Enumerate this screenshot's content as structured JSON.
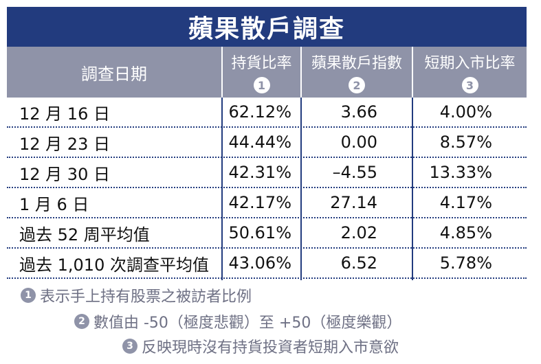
{
  "title": "蘋果散戶調查",
  "colors": {
    "title_bg": "#223b7e",
    "header_bg": "#8f93a8",
    "note_text": "#6e7084"
  },
  "chart_data": {
    "type": "table",
    "title": "蘋果散戶調查",
    "columns": [
      {
        "label": "調查日期",
        "marker": ""
      },
      {
        "label": "持貨比率",
        "marker": "1"
      },
      {
        "label": "蘋果散戶指數",
        "marker": "2"
      },
      {
        "label": "短期入市比率",
        "marker": "3"
      }
    ],
    "rows": [
      {
        "date": "12 月 16 日",
        "v1": "62.12%",
        "v2": "3.66",
        "v3": "4.00%"
      },
      {
        "date": "12 月 23 日",
        "v1": "44.44%",
        "v2": "0.00",
        "v3": "8.57%"
      },
      {
        "date": "12 月 30 日",
        "v1": "42.31%",
        "v2": "–4.55",
        "v3": "13.33%"
      },
      {
        "date": "1 月 6 日",
        "v1": "42.17%",
        "v2": "27.14",
        "v3": "4.17%"
      },
      {
        "date": "過去 52 周平均值",
        "v1": "50.61%",
        "v2": "2.02",
        "v3": "4.85%"
      },
      {
        "date": "過去 1,010 次調查平均值",
        "v1": "43.06%",
        "v2": "6.52",
        "v3": "5.78%"
      }
    ]
  },
  "notes": [
    {
      "marker": "1",
      "text": "表示手上持有股票之被訪者比例"
    },
    {
      "marker": "2",
      "text": "數值由 -50（極度悲觀）至 +50（極度樂觀）"
    },
    {
      "marker": "3",
      "text": "反映現時沒有持貨投資者短期入市意欲"
    }
  ]
}
